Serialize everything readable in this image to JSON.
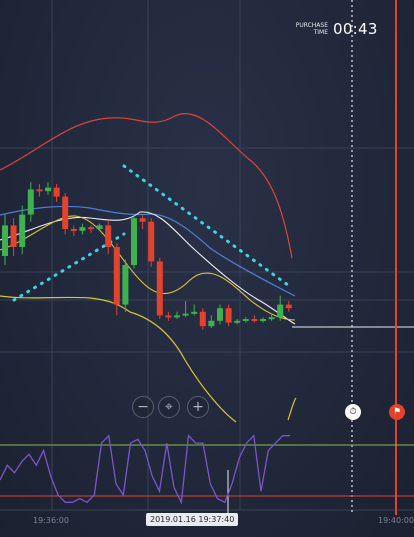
{
  "purchase": {
    "label_line1": "PURCHASE",
    "label_line2": "TIME",
    "countdown": "00:43"
  },
  "zoom": {
    "out": "−",
    "center": "⌖",
    "in": "+"
  },
  "markers": {
    "timer_icon": "stopwatch-icon",
    "finish_icon": "flag-icon"
  },
  "time_axis": {
    "left_label": "19:36:00",
    "right_label": "19:40:00",
    "cursor_label": "2019.01.16 19:37:40"
  },
  "colors": {
    "bullish": "#3db24f",
    "bearish": "#e2432f",
    "bollinger_upper": "#d9463a",
    "bollinger_lower": "#d8c53a",
    "ma_blue": "#4c7fd8",
    "ma_white": "#eef0f5",
    "trend_dots": "#3ad5e6",
    "oscillator": "#7b55c9",
    "osc_upper": "#7ec247",
    "osc_lower": "#d9463a"
  },
  "candles": [
    {
      "o": 0.55,
      "c": 0.72,
      "h": 0.78,
      "l": 0.5
    },
    {
      "o": 0.72,
      "c": 0.6,
      "h": 0.76,
      "l": 0.55
    },
    {
      "o": 0.6,
      "c": 0.78,
      "h": 0.83,
      "l": 0.56
    },
    {
      "o": 0.78,
      "c": 0.92,
      "h": 0.96,
      "l": 0.74
    },
    {
      "o": 0.92,
      "c": 0.91,
      "h": 0.95,
      "l": 0.88
    },
    {
      "o": 0.91,
      "c": 0.93,
      "h": 0.96,
      "l": 0.89
    },
    {
      "o": 0.93,
      "c": 0.88,
      "h": 0.95,
      "l": 0.85
    },
    {
      "o": 0.88,
      "c": 0.7,
      "h": 0.9,
      "l": 0.67
    },
    {
      "o": 0.7,
      "c": 0.69,
      "h": 0.72,
      "l": 0.66
    },
    {
      "o": 0.69,
      "c": 0.71,
      "h": 0.73,
      "l": 0.67
    },
    {
      "o": 0.71,
      "c": 0.7,
      "h": 0.72,
      "l": 0.68
    },
    {
      "o": 0.7,
      "c": 0.72,
      "h": 0.73,
      "l": 0.69
    },
    {
      "o": 0.72,
      "c": 0.6,
      "h": 0.75,
      "l": 0.56
    },
    {
      "o": 0.6,
      "c": 0.28,
      "h": 0.62,
      "l": 0.22
    },
    {
      "o": 0.28,
      "c": 0.5,
      "h": 0.53,
      "l": 0.24
    },
    {
      "o": 0.5,
      "c": 0.76,
      "h": 0.78,
      "l": 0.48
    },
    {
      "o": 0.76,
      "c": 0.74,
      "h": 0.78,
      "l": 0.7
    },
    {
      "o": 0.74,
      "c": 0.52,
      "h": 0.76,
      "l": 0.49
    },
    {
      "o": 0.52,
      "c": 0.22,
      "h": 0.54,
      "l": 0.2
    },
    {
      "o": 0.22,
      "c": 0.21,
      "h": 0.24,
      "l": 0.19
    },
    {
      "o": 0.21,
      "c": 0.22,
      "h": 0.24,
      "l": 0.2
    },
    {
      "o": 0.22,
      "c": 0.23,
      "h": 0.3,
      "l": 0.21
    },
    {
      "o": 0.23,
      "c": 0.24,
      "h": 0.28,
      "l": 0.22
    },
    {
      "o": 0.24,
      "c": 0.16,
      "h": 0.26,
      "l": 0.14
    },
    {
      "o": 0.16,
      "c": 0.19,
      "h": 0.22,
      "l": 0.15
    },
    {
      "o": 0.19,
      "c": 0.26,
      "h": 0.28,
      "l": 0.17
    },
    {
      "o": 0.26,
      "c": 0.18,
      "h": 0.28,
      "l": 0.16
    },
    {
      "o": 0.18,
      "c": 0.19,
      "h": 0.2,
      "l": 0.17
    },
    {
      "o": 0.19,
      "c": 0.2,
      "h": 0.21,
      "l": 0.18
    },
    {
      "o": 0.2,
      "c": 0.19,
      "h": 0.22,
      "l": 0.18
    },
    {
      "o": 0.19,
      "c": 0.2,
      "h": 0.21,
      "l": 0.18
    },
    {
      "o": 0.2,
      "c": 0.21,
      "h": 0.23,
      "l": 0.19
    },
    {
      "o": 0.21,
      "c": 0.28,
      "h": 0.33,
      "l": 0.19
    },
    {
      "o": 0.28,
      "c": 0.26,
      "h": 0.3,
      "l": 0.24
    }
  ],
  "oscillator_values": [
    0.35,
    0.55,
    0.45,
    0.6,
    0.7,
    0.55,
    0.75,
    0.4,
    0.15,
    0.05,
    0.05,
    0.1,
    0.05,
    0.15,
    0.85,
    0.95,
    0.3,
    0.15,
    0.85,
    0.9,
    0.75,
    0.4,
    0.2,
    0.85,
    0.25,
    0.05,
    0.95,
    0.85,
    0.85,
    0.3,
    0.1,
    0.05,
    0.3,
    0.65,
    0.85,
    0.95,
    0.2,
    0.75,
    0.85,
    0.95,
    0.95
  ]
}
